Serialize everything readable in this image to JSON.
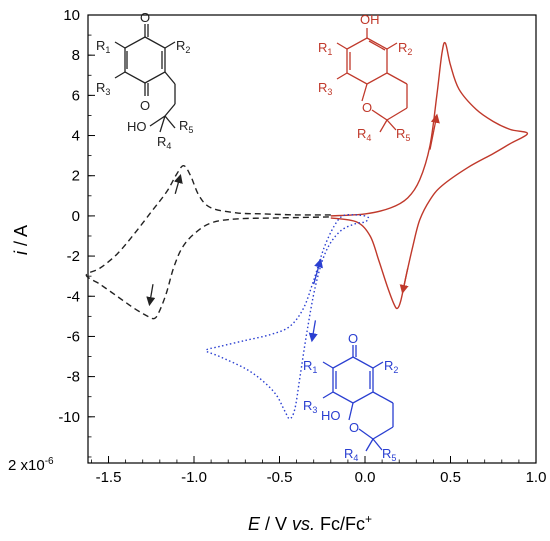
{
  "chart_data": {
    "type": "line",
    "xlabel": {
      "italic": "E",
      "mid": " / V ",
      "italic2": "vs.",
      "tail": " Fc/Fc",
      "sup": "+"
    },
    "ylabel": {
      "italic": "i",
      "tail": " / A"
    },
    "y_multiplier": {
      "lead": "2 ",
      "base": "x10",
      "exp": "-6"
    },
    "xlim": [
      -1.62,
      1.0
    ],
    "ylim": [
      -12.3,
      10.0
    ],
    "x_ticks": [
      -1.5,
      -1.0,
      -0.5,
      0.0,
      0.5,
      1.0
    ],
    "x_tick_labels": [
      "-1.5",
      "-1.0",
      "-0.5",
      "0.0",
      "0.5",
      "1.0"
    ],
    "y_ticks": [
      10,
      8,
      6,
      4,
      2,
      0,
      -2,
      -4,
      -6,
      -8,
      -10
    ],
    "y_tick_labels": [
      "10",
      "8",
      "6",
      "4",
      "2",
      "0",
      "-2",
      "-4",
      "-6",
      "-8",
      "-10"
    ],
    "grid": false,
    "series": [
      {
        "style": "solid",
        "color": "#c0392b",
        "points": [
          [
            -0.2,
            0.0
          ],
          [
            0.0,
            0.1
          ],
          [
            0.15,
            0.4
          ],
          [
            0.25,
            0.9
          ],
          [
            0.32,
            1.8
          ],
          [
            0.38,
            3.5
          ],
          [
            0.42,
            6.0
          ],
          [
            0.45,
            8.1
          ],
          [
            0.47,
            8.6
          ],
          [
            0.5,
            7.5
          ],
          [
            0.55,
            6.3
          ],
          [
            0.65,
            5.3
          ],
          [
            0.75,
            4.7
          ],
          [
            0.85,
            4.3
          ],
          [
            0.95,
            4.1
          ],
          [
            0.85,
            3.6
          ],
          [
            0.75,
            3.1
          ],
          [
            0.6,
            2.4
          ],
          [
            0.45,
            1.5
          ],
          [
            0.38,
            0.8
          ],
          [
            0.32,
            -0.2
          ],
          [
            0.28,
            -1.5
          ],
          [
            0.24,
            -3.0
          ],
          [
            0.21,
            -4.2
          ],
          [
            0.19,
            -4.6
          ],
          [
            0.17,
            -4.4
          ],
          [
            0.13,
            -3.5
          ],
          [
            0.08,
            -2.2
          ],
          [
            0.03,
            -1.0
          ],
          [
            -0.05,
            -0.3
          ],
          [
            -0.2,
            -0.1
          ]
        ]
      },
      {
        "style": "dashed",
        "color": "#222222",
        "points": [
          [
            -0.2,
            0.05
          ],
          [
            -0.4,
            0.05
          ],
          [
            -0.6,
            0.1
          ],
          [
            -0.75,
            0.15
          ],
          [
            -0.9,
            0.4
          ],
          [
            -0.97,
            1.0
          ],
          [
            -1.02,
            2.0
          ],
          [
            -1.06,
            2.5
          ],
          [
            -1.1,
            2.1
          ],
          [
            -1.16,
            1.2
          ],
          [
            -1.25,
            0.2
          ],
          [
            -1.35,
            -0.9
          ],
          [
            -1.45,
            -1.9
          ],
          [
            -1.55,
            -2.6
          ],
          [
            -1.63,
            -2.95
          ],
          [
            -1.55,
            -3.4
          ],
          [
            -1.45,
            -4.0
          ],
          [
            -1.35,
            -4.6
          ],
          [
            -1.27,
            -5.0
          ],
          [
            -1.23,
            -5.1
          ],
          [
            -1.2,
            -4.7
          ],
          [
            -1.16,
            -3.8
          ],
          [
            -1.12,
            -2.6
          ],
          [
            -1.07,
            -1.6
          ],
          [
            -1.0,
            -0.9
          ],
          [
            -0.9,
            -0.35
          ],
          [
            -0.75,
            -0.15
          ],
          [
            -0.5,
            -0.1
          ],
          [
            -0.2,
            -0.05
          ]
        ]
      },
      {
        "style": "dotted",
        "color": "#2a3fd1",
        "points": [
          [
            0.0,
            0.0
          ],
          [
            -0.06,
            0.05
          ],
          [
            -0.13,
            0.0
          ],
          [
            -0.18,
            -0.5
          ],
          [
            -0.24,
            -1.6
          ],
          [
            -0.3,
            -3.2
          ],
          [
            -0.36,
            -4.6
          ],
          [
            -0.44,
            -5.5
          ],
          [
            -0.55,
            -5.9
          ],
          [
            -0.7,
            -6.2
          ],
          [
            -0.85,
            -6.5
          ],
          [
            -0.93,
            -6.7
          ],
          [
            -0.85,
            -7.0
          ],
          [
            -0.7,
            -7.6
          ],
          [
            -0.6,
            -8.2
          ],
          [
            -0.52,
            -8.9
          ],
          [
            -0.47,
            -9.7
          ],
          [
            -0.44,
            -10.1
          ],
          [
            -0.41,
            -9.6
          ],
          [
            -0.38,
            -8.0
          ],
          [
            -0.34,
            -5.8
          ],
          [
            -0.29,
            -3.5
          ],
          [
            -0.23,
            -1.8
          ],
          [
            -0.15,
            -0.8
          ],
          [
            -0.06,
            -0.4
          ],
          [
            0.0,
            -0.3
          ],
          [
            0.02,
            -0.1
          ],
          [
            0.0,
            0.0
          ]
        ]
      }
    ],
    "arrows": [
      {
        "color": "#c0392b",
        "from": [
          0.38,
          3.3
        ],
        "to": [
          0.42,
          5.0
        ]
      },
      {
        "color": "#c0392b",
        "from": [
          0.25,
          -2.6
        ],
        "to": [
          0.22,
          -3.8
        ]
      },
      {
        "color": "#222222",
        "from": [
          -1.11,
          1.1
        ],
        "to": [
          -1.08,
          2.0
        ]
      },
      {
        "color": "#222222",
        "from": [
          -1.24,
          -3.4
        ],
        "to": [
          -1.26,
          -4.4
        ]
      },
      {
        "color": "#2a3fd1",
        "from": [
          -0.3,
          -3.4
        ],
        "to": [
          -0.26,
          -2.2
        ]
      },
      {
        "color": "#2a3fd1",
        "from": [
          -0.29,
          -5.2
        ],
        "to": [
          -0.31,
          -6.2
        ]
      }
    ]
  },
  "structures": {
    "quinone": {
      "color": "#222222",
      "labels": {
        "o_top": "O",
        "r1": "R",
        "r1s": "1",
        "r2": "R",
        "r2s": "2",
        "r3": "R",
        "r3s": "3",
        "o_bot": "O",
        "ho": "HO",
        "r4": "R",
        "r4s": "4",
        "r5": "R",
        "r5s": "5"
      }
    },
    "chromanol": {
      "color": "#c0392b",
      "labels": {
        "oh": "OH",
        "r1": "R",
        "r1s": "1",
        "r2": "R",
        "r2s": "2",
        "r3": "R",
        "r3s": "3",
        "o": "O",
        "r4": "R",
        "r4s": "4",
        "r5": "R",
        "r5s": "5"
      }
    },
    "hemiketal": {
      "color": "#2a3fd1",
      "labels": {
        "o_top": "O",
        "r1": "R",
        "r1s": "1",
        "r2": "R",
        "r2s": "2",
        "r3": "R",
        "r3s": "3",
        "ho": "HO",
        "o": "O",
        "r4": "R",
        "r4s": "4",
        "r5": "R",
        "r5s": "5"
      }
    }
  }
}
